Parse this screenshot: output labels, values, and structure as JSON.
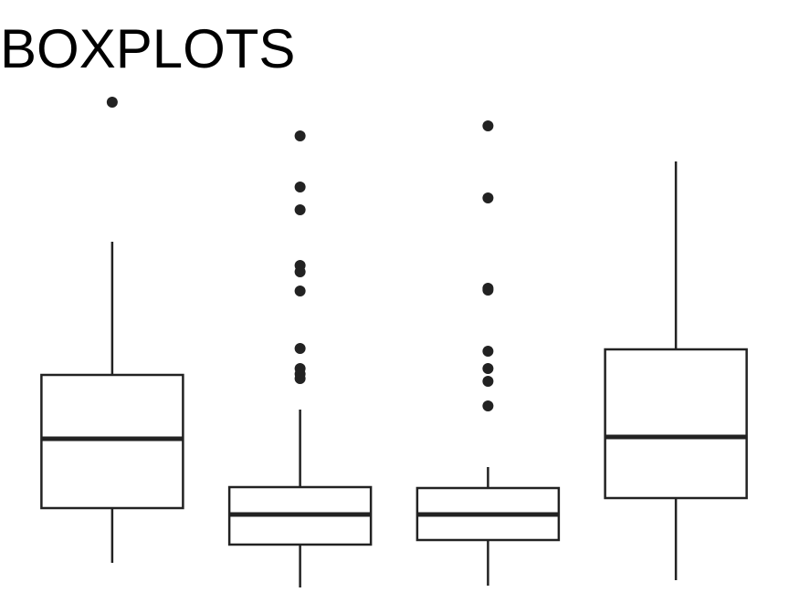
{
  "chart_data": {
    "type": "box",
    "title": "BOXPLOTS",
    "color": "#222222",
    "ylim": [
      0,
      600
    ],
    "series": [
      {
        "min": 43,
        "q1": 103,
        "median": 179,
        "q3": 249,
        "max": 395,
        "outliers": [
          548
        ]
      },
      {
        "min": 16,
        "q1": 63,
        "median": 96,
        "q3": 126,
        "max": 211,
        "outliers": [
          511,
          455,
          430,
          369,
          362,
          341,
          278,
          256,
          250,
          245
        ]
      },
      {
        "min": 18,
        "q1": 68,
        "median": 96,
        "q3": 125,
        "max": 148,
        "outliers": [
          522,
          443,
          344,
          342,
          275,
          256,
          242,
          215
        ]
      },
      {
        "min": 24,
        "q1": 114,
        "median": 181,
        "q3": 277,
        "max": 483,
        "outliers": []
      }
    ]
  }
}
